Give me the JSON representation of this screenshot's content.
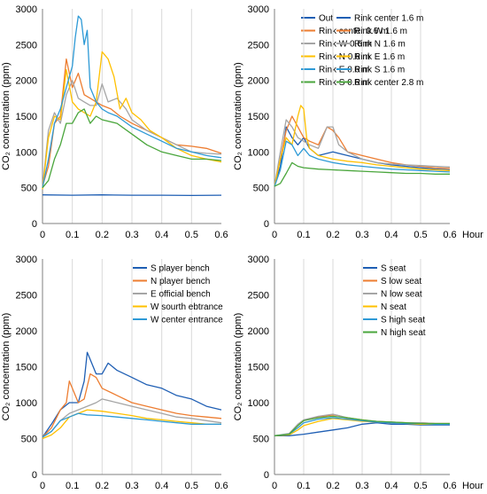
{
  "colors": {
    "blue": "#1f5fb4",
    "orange": "#ed7d31",
    "gray": "#a5a5a5",
    "yellow": "#ffc000",
    "lightblue": "#2e9ad6",
    "green": "#4aa63c",
    "grid": "#d9d9d9",
    "axis": "#7f7f7f"
  },
  "chart_data": [
    {
      "type": "line",
      "ylabel": "CO₂ concentration (ppm)",
      "xlabel": "",
      "xlim": [
        0,
        0.6
      ],
      "ylim": [
        0,
        3000
      ],
      "legend": "top-right",
      "xticks": [
        "0",
        "0.1",
        "0.2",
        "0.3",
        "0.4",
        "0.5",
        "0.6"
      ],
      "yticks": [
        "0",
        "500",
        "1000",
        "1500",
        "2000",
        "2500",
        "3000"
      ],
      "series": [
        {
          "name": "Out",
          "color": "blue",
          "x": [
            0,
            0.1,
            0.2,
            0.3,
            0.4,
            0.5,
            0.6
          ],
          "y": [
            400,
            395,
            400,
            395,
            395,
            392,
            395
          ]
        },
        {
          "name": "Rink center 0.6 m",
          "color": "orange",
          "x": [
            0,
            0.02,
            0.04,
            0.06,
            0.08,
            0.1,
            0.12,
            0.14,
            0.16,
            0.18,
            0.2,
            0.23,
            0.26,
            0.3,
            0.35,
            0.4,
            0.45,
            0.5,
            0.55,
            0.6
          ],
          "y": [
            520,
            800,
            1400,
            1500,
            2300,
            1900,
            2100,
            1800,
            1750,
            1700,
            1650,
            1600,
            1500,
            1400,
            1300,
            1200,
            1100,
            1080,
            1050,
            980
          ]
        },
        {
          "name": "Rink W 0.6 m",
          "color": "gray",
          "x": [
            0,
            0.02,
            0.04,
            0.06,
            0.08,
            0.1,
            0.12,
            0.14,
            0.16,
            0.18,
            0.2,
            0.22,
            0.25,
            0.28,
            0.3,
            0.35,
            0.4,
            0.45,
            0.5,
            0.55,
            0.6
          ],
          "y": [
            500,
            1300,
            1550,
            1400,
            1800,
            2000,
            1750,
            1700,
            1650,
            1650,
            1950,
            1700,
            1750,
            1600,
            1450,
            1300,
            1200,
            1100,
            1000,
            980,
            970
          ]
        },
        {
          "name": "Rink N 0.6 m",
          "color": "yellow",
          "x": [
            0,
            0.02,
            0.04,
            0.06,
            0.08,
            0.1,
            0.12,
            0.14,
            0.16,
            0.18,
            0.2,
            0.22,
            0.24,
            0.26,
            0.28,
            0.3,
            0.33,
            0.36,
            0.4,
            0.45,
            0.5,
            0.55,
            0.6
          ],
          "y": [
            480,
            1200,
            1500,
            1450,
            2150,
            1700,
            1600,
            1550,
            1500,
            1700,
            2400,
            2300,
            2050,
            1600,
            1750,
            1550,
            1450,
            1300,
            1200,
            1050,
            950,
            900,
            860
          ]
        },
        {
          "name": "Rink E 0.6 m",
          "color": "lightblue",
          "x": [
            0,
            0.02,
            0.04,
            0.06,
            0.08,
            0.1,
            0.11,
            0.12,
            0.13,
            0.14,
            0.15,
            0.16,
            0.18,
            0.2,
            0.22,
            0.25,
            0.3,
            0.35,
            0.4,
            0.45,
            0.5,
            0.55,
            0.6
          ],
          "y": [
            500,
            900,
            1400,
            1600,
            1900,
            2200,
            2600,
            2900,
            2850,
            2500,
            2700,
            1900,
            1700,
            1600,
            1550,
            1500,
            1350,
            1250,
            1150,
            1050,
            1000,
            950,
            920
          ]
        },
        {
          "name": "Rink S 0.6 m",
          "color": "green",
          "x": [
            0,
            0.02,
            0.04,
            0.06,
            0.08,
            0.1,
            0.12,
            0.14,
            0.16,
            0.18,
            0.2,
            0.25,
            0.3,
            0.35,
            0.4,
            0.45,
            0.5,
            0.55,
            0.6
          ],
          "y": [
            500,
            600,
            900,
            1100,
            1400,
            1400,
            1550,
            1600,
            1400,
            1500,
            1450,
            1400,
            1250,
            1100,
            1000,
            950,
            900,
            900,
            880
          ]
        }
      ]
    },
    {
      "type": "line",
      "ylabel": "CO₂ concentration (ppm)",
      "xlabel": "Hour",
      "xlim": [
        0,
        0.6
      ],
      "ylim": [
        0,
        3000
      ],
      "legend": "top-right",
      "xticks": [
        "0",
        "0.1",
        "0.2",
        "0.3",
        "0.4",
        "0.5",
        "0.6"
      ],
      "yticks": [
        "0",
        "500",
        "1000",
        "1500",
        "2000",
        "2500",
        "3000"
      ],
      "series": [
        {
          "name": "Rink center 1.6 m",
          "color": "blue",
          "x": [
            0,
            0.02,
            0.04,
            0.06,
            0.08,
            0.1,
            0.12,
            0.15,
            0.2,
            0.25,
            0.3,
            0.35,
            0.4,
            0.45,
            0.5,
            0.55,
            0.6
          ],
          "y": [
            520,
            800,
            1350,
            1200,
            1100,
            1200,
            1050,
            950,
            1000,
            950,
            900,
            850,
            820,
            800,
            780,
            760,
            750
          ]
        },
        {
          "name": "Rink W 1.6 m",
          "color": "orange",
          "x": [
            0,
            0.02,
            0.04,
            0.06,
            0.08,
            0.1,
            0.12,
            0.15,
            0.18,
            0.2,
            0.22,
            0.25,
            0.3,
            0.35,
            0.4,
            0.45,
            0.5,
            0.55,
            0.6
          ],
          "y": [
            520,
            900,
            1300,
            1500,
            1350,
            1200,
            1150,
            1100,
            1350,
            1300,
            1200,
            1000,
            950,
            900,
            850,
            820,
            800,
            780,
            770
          ]
        },
        {
          "name": "Rink N 1.6 m",
          "color": "gray",
          "x": [
            0,
            0.02,
            0.04,
            0.06,
            0.08,
            0.1,
            0.12,
            0.15,
            0.18,
            0.2,
            0.22,
            0.25,
            0.3,
            0.35,
            0.4,
            0.45,
            0.5,
            0.55,
            0.6
          ],
          "y": [
            520,
            1000,
            1450,
            1350,
            1200,
            1150,
            1100,
            1050,
            1350,
            1350,
            1100,
            1000,
            900,
            850,
            830,
            820,
            810,
            800,
            790
          ]
        },
        {
          "name": "Rink E 1.6 m",
          "color": "yellow",
          "x": [
            0,
            0.02,
            0.04,
            0.06,
            0.08,
            0.09,
            0.1,
            0.11,
            0.12,
            0.15,
            0.2,
            0.25,
            0.3,
            0.35,
            0.4,
            0.45,
            0.5,
            0.55,
            0.6
          ],
          "y": [
            520,
            900,
            1200,
            1100,
            1500,
            1650,
            1600,
            1200,
            1050,
            950,
            900,
            870,
            850,
            820,
            800,
            780,
            760,
            750,
            740
          ]
        },
        {
          "name": "Rink S 1.6 m",
          "color": "lightblue",
          "x": [
            0,
            0.02,
            0.04,
            0.06,
            0.08,
            0.1,
            0.12,
            0.15,
            0.2,
            0.25,
            0.3,
            0.35,
            0.4,
            0.45,
            0.5,
            0.55,
            0.6
          ],
          "y": [
            520,
            750,
            1150,
            1100,
            950,
            1050,
            950,
            900,
            850,
            820,
            800,
            780,
            760,
            750,
            740,
            730,
            720
          ]
        },
        {
          "name": "Rink center 2.8 m",
          "color": "green",
          "x": [
            0,
            0.02,
            0.04,
            0.06,
            0.08,
            0.1,
            0.15,
            0.2,
            0.25,
            0.3,
            0.35,
            0.4,
            0.45,
            0.5,
            0.55,
            0.6
          ],
          "y": [
            520,
            560,
            700,
            850,
            800,
            780,
            760,
            750,
            740,
            730,
            720,
            710,
            700,
            700,
            690,
            690
          ]
        }
      ]
    },
    {
      "type": "line",
      "ylabel": "CO₂ concentration (ppm)",
      "xlabel": "",
      "xlim": [
        0,
        0.6
      ],
      "ylim": [
        0,
        3000
      ],
      "legend": "top-right",
      "xticks": [
        "0",
        "0.1",
        "0.2",
        "0.3",
        "0.4",
        "0.5",
        "0.6"
      ],
      "yticks": [
        "0",
        "500",
        "1000",
        "1500",
        "2000",
        "2500",
        "3000"
      ],
      "series": [
        {
          "name": "S player bench",
          "color": "blue",
          "x": [
            0,
            0.03,
            0.06,
            0.09,
            0.12,
            0.14,
            0.15,
            0.16,
            0.18,
            0.2,
            0.22,
            0.25,
            0.3,
            0.35,
            0.4,
            0.45,
            0.5,
            0.55,
            0.6
          ],
          "y": [
            520,
            700,
            900,
            1000,
            1000,
            1300,
            1700,
            1600,
            1400,
            1400,
            1550,
            1450,
            1350,
            1250,
            1200,
            1100,
            1050,
            950,
            900
          ]
        },
        {
          "name": "N player bench",
          "color": "orange",
          "x": [
            0,
            0.03,
            0.06,
            0.08,
            0.09,
            0.1,
            0.12,
            0.14,
            0.16,
            0.18,
            0.2,
            0.25,
            0.3,
            0.35,
            0.4,
            0.45,
            0.5,
            0.55,
            0.6
          ],
          "y": [
            520,
            650,
            900,
            1000,
            1300,
            1200,
            1000,
            1050,
            1400,
            1350,
            1200,
            1100,
            1000,
            950,
            900,
            850,
            820,
            800,
            780
          ]
        },
        {
          "name": "E official bench",
          "color": "gray",
          "x": [
            0,
            0.03,
            0.06,
            0.09,
            0.12,
            0.15,
            0.18,
            0.2,
            0.25,
            0.3,
            0.35,
            0.4,
            0.45,
            0.5,
            0.55,
            0.6
          ],
          "y": [
            520,
            600,
            750,
            850,
            900,
            950,
            1000,
            1050,
            1000,
            950,
            900,
            850,
            800,
            780,
            750,
            720
          ]
        },
        {
          "name": "W sourth ebtrance",
          "color": "yellow",
          "x": [
            0,
            0.03,
            0.06,
            0.09,
            0.12,
            0.15,
            0.2,
            0.25,
            0.3,
            0.35,
            0.4,
            0.45,
            0.5,
            0.55,
            0.6
          ],
          "y": [
            500,
            550,
            650,
            800,
            850,
            900,
            880,
            850,
            820,
            780,
            760,
            740,
            720,
            700,
            700
          ]
        },
        {
          "name": "W center entrance",
          "color": "lightblue",
          "x": [
            0,
            0.03,
            0.06,
            0.09,
            0.12,
            0.15,
            0.2,
            0.25,
            0.3,
            0.35,
            0.4,
            0.45,
            0.5,
            0.55,
            0.6
          ],
          "y": [
            520,
            600,
            750,
            800,
            850,
            830,
            820,
            800,
            780,
            760,
            740,
            720,
            700,
            700,
            700
          ]
        }
      ]
    },
    {
      "type": "line",
      "ylabel": "CO₂ concentration (ppm)",
      "xlabel": "Hour",
      "xlim": [
        0,
        0.6
      ],
      "ylim": [
        0,
        3000
      ],
      "legend": "top-right",
      "xticks": [
        "0",
        "0.1",
        "0.2",
        "0.3",
        "0.4",
        "0.5",
        "0.6"
      ],
      "yticks": [
        "0",
        "500",
        "1000",
        "1500",
        "2000",
        "2500",
        "3000"
      ],
      "series": [
        {
          "name": "S seat",
          "color": "blue",
          "x": [
            0,
            0.05,
            0.1,
            0.15,
            0.2,
            0.25,
            0.3,
            0.35,
            0.4,
            0.45,
            0.5,
            0.55,
            0.6
          ],
          "y": [
            540,
            540,
            560,
            590,
            620,
            650,
            700,
            720,
            700,
            700,
            690,
            690,
            690
          ]
        },
        {
          "name": "S low seat",
          "color": "orange",
          "x": [
            0,
            0.05,
            0.08,
            0.1,
            0.15,
            0.2,
            0.22,
            0.25,
            0.3,
            0.35,
            0.4,
            0.45,
            0.5,
            0.55,
            0.6
          ],
          "y": [
            540,
            560,
            680,
            750,
            800,
            830,
            820,
            780,
            750,
            740,
            730,
            720,
            720,
            710,
            710
          ]
        },
        {
          "name": "N low seat",
          "color": "gray",
          "x": [
            0,
            0.05,
            0.08,
            0.1,
            0.15,
            0.2,
            0.22,
            0.25,
            0.3,
            0.35,
            0.4,
            0.45,
            0.5,
            0.55,
            0.6
          ],
          "y": [
            540,
            570,
            700,
            760,
            810,
            840,
            820,
            790,
            760,
            740,
            730,
            720,
            720,
            710,
            710
          ]
        },
        {
          "name": "N seat",
          "color": "yellow",
          "x": [
            0,
            0.05,
            0.08,
            0.1,
            0.15,
            0.2,
            0.25,
            0.3,
            0.35,
            0.4,
            0.45,
            0.5,
            0.55,
            0.6
          ],
          "y": [
            540,
            550,
            620,
            680,
            740,
            780,
            760,
            740,
            730,
            720,
            710,
            700,
            700,
            700
          ]
        },
        {
          "name": "S high seat",
          "color": "lightblue",
          "x": [
            0,
            0.05,
            0.08,
            0.1,
            0.15,
            0.2,
            0.25,
            0.3,
            0.35,
            0.4,
            0.45,
            0.5,
            0.55,
            0.6
          ],
          "y": [
            540,
            560,
            650,
            720,
            770,
            790,
            770,
            750,
            730,
            720,
            710,
            710,
            700,
            700
          ]
        },
        {
          "name": "N high seat",
          "color": "green",
          "x": [
            0,
            0.05,
            0.08,
            0.1,
            0.15,
            0.2,
            0.25,
            0.3,
            0.35,
            0.4,
            0.45,
            0.5,
            0.55,
            0.6
          ],
          "y": [
            540,
            560,
            680,
            750,
            790,
            810,
            790,
            760,
            740,
            730,
            720,
            710,
            710,
            710
          ]
        }
      ]
    }
  ]
}
